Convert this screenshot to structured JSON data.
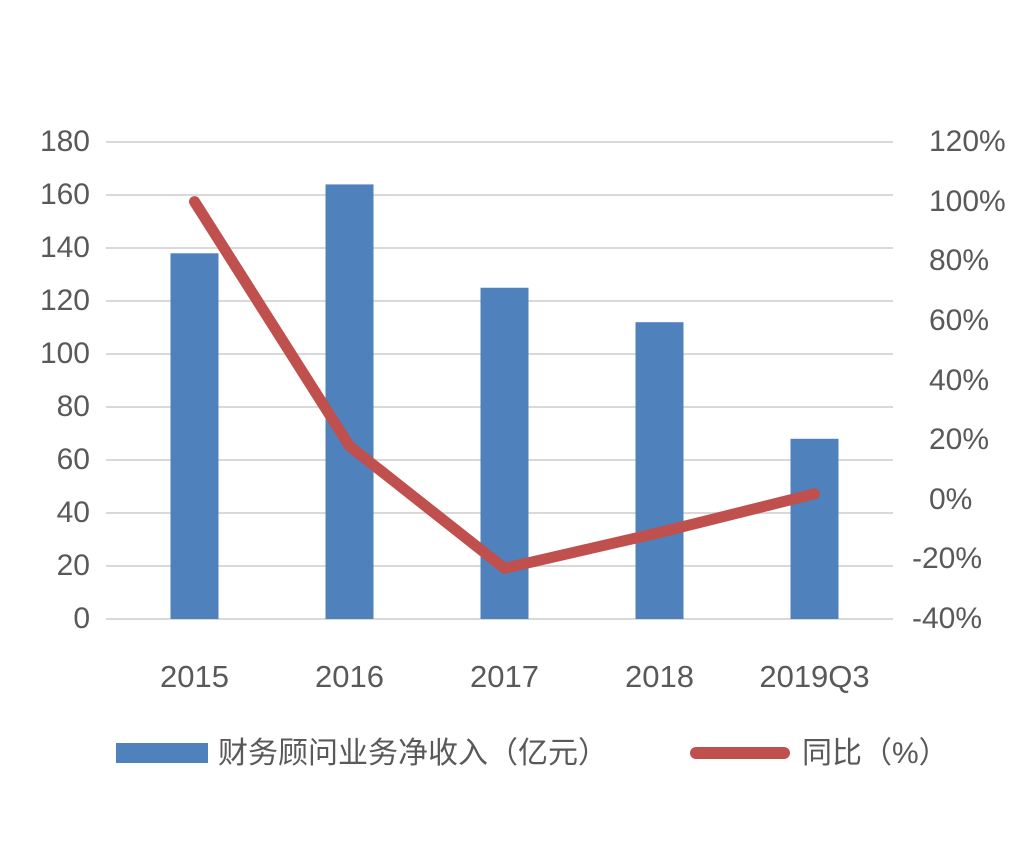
{
  "chart_data": {
    "type": "combo",
    "categories": [
      "2015",
      "2016",
      "2017",
      "2018",
      "2019Q3"
    ],
    "series": [
      {
        "name": "财务顾问业务净收入（亿元）",
        "type": "bar",
        "axis": "left",
        "values": [
          138,
          164,
          125,
          112,
          68
        ],
        "color": "#4F81BD"
      },
      {
        "name": "同比（%）",
        "type": "line",
        "axis": "right",
        "values": [
          100,
          18,
          -23,
          -11,
          2
        ],
        "color": "#C0504D"
      }
    ],
    "left_axis": {
      "min": 0,
      "max": 180,
      "step": 20,
      "tick_labels": [
        "180",
        "160",
        "140",
        "120",
        "100",
        "80",
        "60",
        "40",
        "20",
        "0"
      ]
    },
    "right_axis": {
      "min": -40,
      "max": 120,
      "step": 20,
      "tick_labels": [
        "120%",
        "100%",
        "80%",
        "60%",
        "40%",
        "20%",
        "0%",
        "-20%",
        "-40%"
      ]
    },
    "grid": true,
    "legend_position": "bottom",
    "colors": {
      "grid": "#D9D9D9",
      "tick_text": "#595959",
      "background": "#FFFFFF"
    }
  }
}
